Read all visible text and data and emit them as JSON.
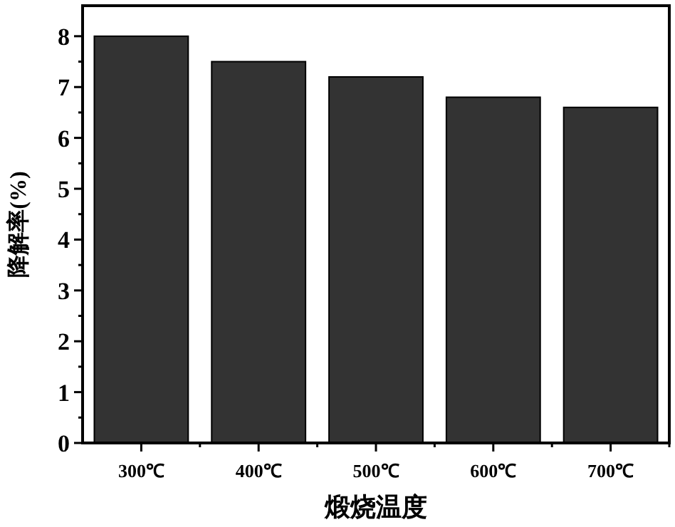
{
  "chart_data": {
    "type": "bar",
    "xlabel": "煅烧温度",
    "ylabel": "降解率(%)",
    "categories": [
      "300℃",
      "400℃",
      "500℃",
      "600℃",
      "700℃"
    ],
    "values": [
      8.0,
      7.5,
      7.2,
      6.8,
      6.6
    ],
    "color": "#333333",
    "ylim": [
      0,
      8.6
    ],
    "yticks": [
      0,
      {
        "value": 0.5,
        "label": null
      },
      1,
      {
        "value": 1.5,
        "label": null
      },
      2,
      {
        "value": 2.5,
        "label": null
      },
      3,
      {
        "value": 3.5,
        "label": null
      },
      4,
      {
        "value": 4.5,
        "label": null
      },
      5,
      {
        "value": 5.5,
        "label": null
      },
      6,
      {
        "value": 6.5,
        "label": null
      },
      7,
      {
        "value": 7.5,
        "label": null
      },
      8
    ],
    "grid": false
  }
}
